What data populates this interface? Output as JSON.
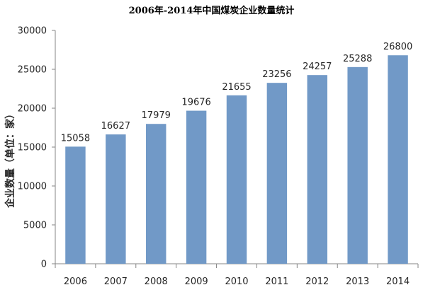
{
  "chart_data": {
    "type": "bar",
    "title": "2006年-2014年中国煤炭企业数量统计",
    "xlabel": "",
    "ylabel": "企业数量（单位：家）",
    "categories": [
      "2006",
      "2007",
      "2008",
      "2009",
      "2010",
      "2011",
      "2012",
      "2013",
      "2014"
    ],
    "values": [
      15058,
      16627,
      17979,
      19676,
      21655,
      23256,
      24257,
      25288,
      26800
    ],
    "data_labels": [
      "15058",
      "16627",
      "17979",
      "19676",
      "21655",
      "23256",
      "24257",
      "25288",
      "26800"
    ],
    "ylim": [
      0,
      30000
    ],
    "yticks": [
      0,
      5000,
      10000,
      15000,
      20000,
      25000,
      30000
    ],
    "ytick_labels": [
      "0",
      "5000",
      "10000",
      "15000",
      "20000",
      "25000",
      "30000"
    ],
    "grid": false,
    "legend": "none",
    "bar_color": "#7199c7"
  }
}
